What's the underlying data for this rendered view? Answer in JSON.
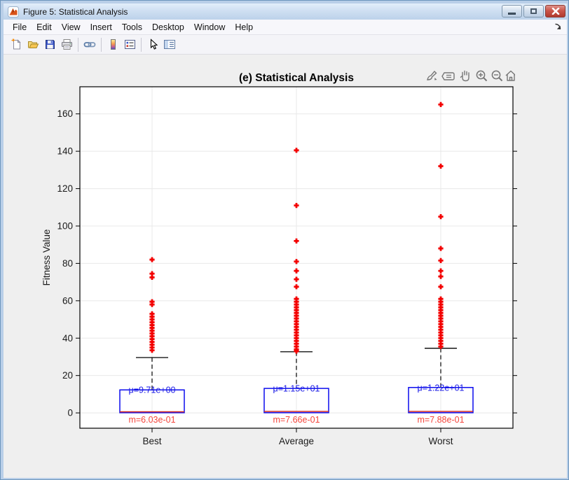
{
  "window": {
    "title": "Figure 5: Statistical Analysis",
    "controls": {
      "minimize": "minimize",
      "restore": "restore",
      "close": "close"
    }
  },
  "menu": {
    "items": [
      "File",
      "Edit",
      "View",
      "Insert",
      "Tools",
      "Desktop",
      "Window",
      "Help"
    ]
  },
  "toolbar": {
    "icons": [
      "new-figure",
      "open-file",
      "save-figure",
      "print-figure",
      "link-plot",
      "insert-colorbar",
      "insert-legend",
      "edit-plot",
      "plot-browser"
    ]
  },
  "axes_toolbar": {
    "icons": [
      "brush",
      "datatip",
      "pan",
      "zoom-in",
      "zoom-out",
      "home"
    ]
  },
  "chart_data": {
    "type": "boxplot",
    "title": "(e) Statistical Analysis",
    "ylabel": "Fitness Value",
    "xlabel": "",
    "categories": [
      "Best",
      "Average",
      "Worst"
    ],
    "yticks": [
      0,
      20,
      40,
      60,
      80,
      100,
      120,
      140,
      160
    ],
    "ylim": [
      -8.2,
      174.5
    ],
    "grid": true,
    "colors": {
      "box": "#0b0bee",
      "median": "#d42a22",
      "mean_text": "#1a1ae6",
      "median_text": "#f4453c",
      "outlier": "#f30000",
      "whisker": "#000000",
      "gridline": "#e8e8e8",
      "tick_text": "#1a1a1a"
    },
    "series": [
      {
        "name": "Best",
        "q1": 0.1,
        "q3": 12.3,
        "median": 0.603,
        "median_label": "m=6.03e-01",
        "mean": 9.71,
        "mean_label": "μ=9.71e+00",
        "whisker_high": 29.6,
        "outliers": [
          82,
          74.5,
          72.5,
          59.5,
          58,
          53,
          51.5,
          50,
          48.5,
          47,
          45.5,
          44,
          42.5,
          41,
          39.5,
          38,
          36.5,
          35,
          33.5
        ]
      },
      {
        "name": "Average",
        "q1": 0.1,
        "q3": 13.1,
        "median": 0.766,
        "median_label": "m=7.66e-01",
        "mean": 11.5,
        "mean_label": "μ=1.15e+01",
        "whisker_high": 32.7,
        "outliers": [
          140.5,
          111,
          92,
          81,
          76,
          71.5,
          67.5,
          61,
          59.5,
          58,
          56.5,
          55,
          53.5,
          52,
          50.5,
          49,
          47.5,
          46,
          44.5,
          43,
          41.5,
          40,
          38.5,
          37,
          35.5,
          34,
          33
        ]
      },
      {
        "name": "Worst",
        "q1": 0.1,
        "q3": 13.6,
        "median": 0.788,
        "median_label": "m=7.88e-01",
        "mean": 12.2,
        "mean_label": "μ=1.22e+01",
        "whisker_high": 34.6,
        "outliers": [
          165,
          132,
          105,
          88,
          81.5,
          76,
          73,
          67.5,
          61,
          59.5,
          58,
          56.5,
          55,
          53.5,
          52,
          50.5,
          49,
          47.5,
          46,
          44.5,
          43,
          41.5,
          40,
          38.5,
          37,
          35.5
        ]
      }
    ]
  }
}
